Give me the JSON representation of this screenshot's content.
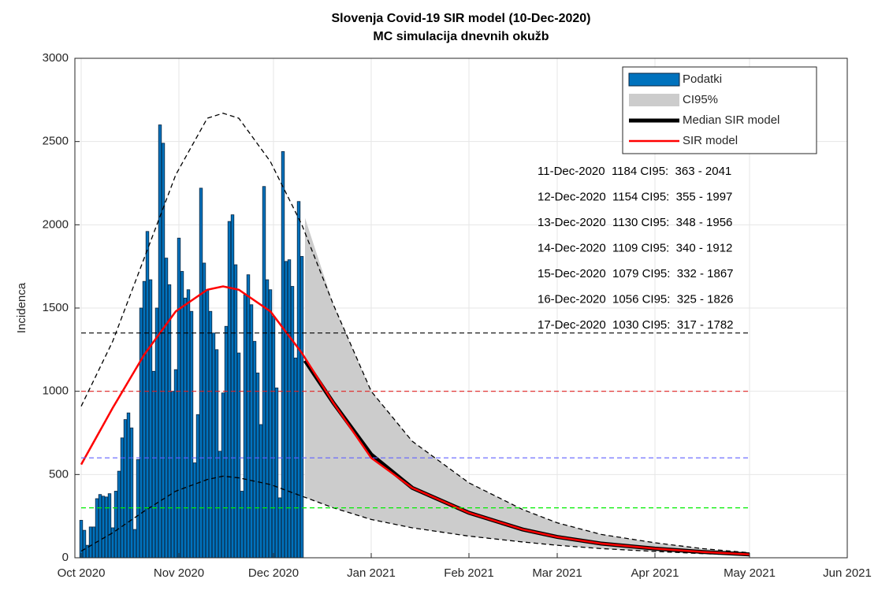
{
  "chart_data": {
    "type": "combo",
    "title": "Slovenja Covid-19 SIR model (10-Dec-2020)",
    "subtitle": "MC simulacija dnevnih okužb",
    "y_label": "Incidenca",
    "xlim": [
      -2,
      243
    ],
    "xticks": [
      {
        "value": 0,
        "label": "Oct 2020"
      },
      {
        "value": 31,
        "label": "Nov 2020"
      },
      {
        "value": 61,
        "label": "Dec 2020"
      },
      {
        "value": 92,
        "label": "Jan 2021"
      },
      {
        "value": 123,
        "label": "Feb 2021"
      },
      {
        "value": 151,
        "label": "Mar 2021"
      },
      {
        "value": 182,
        "label": "Apr 2021"
      },
      {
        "value": 212,
        "label": "May 2021"
      },
      {
        "value": 243,
        "label": "Jun 2021"
      }
    ],
    "ylim": [
      0,
      3000
    ],
    "yticks": [
      0,
      500,
      1000,
      1500,
      2000,
      2500,
      3000
    ],
    "grid": true,
    "legend": "upper right",
    "series": [
      {
        "name": "Podatki",
        "type": "bar",
        "color": "#0072bd",
        "x": [
          0,
          1,
          2,
          3,
          4,
          5,
          6,
          7,
          8,
          9,
          10,
          11,
          12,
          13,
          14,
          15,
          16,
          17,
          18,
          19,
          20,
          21,
          22,
          23,
          24,
          25,
          26,
          27,
          28,
          29,
          30,
          31,
          32,
          33,
          34,
          35,
          36,
          37,
          38,
          39,
          40,
          41,
          42,
          43,
          44,
          45,
          46,
          47,
          48,
          49,
          50,
          51,
          52,
          53,
          54,
          55,
          56,
          57,
          58,
          59,
          60,
          61,
          62,
          63,
          64,
          65,
          66,
          67,
          68,
          69,
          70
        ],
        "values": [
          225,
          165,
          75,
          185,
          185,
          355,
          380,
          370,
          365,
          385,
          180,
          400,
          520,
          720,
          830,
          870,
          780,
          170,
          590,
          1500,
          1660,
          1960,
          1670,
          1120,
          1500,
          2600,
          2490,
          1800,
          1640,
          1000,
          1130,
          1920,
          1720,
          1560,
          1610,
          1480,
          570,
          860,
          2220,
          1770,
          1610,
          1480,
          1350,
          1250,
          640,
          990,
          1390,
          2020,
          2060,
          1760,
          1230,
          400,
          1580,
          1700,
          1520,
          1300,
          1110,
          800,
          2230,
          1670,
          1610,
          1450,
          1020,
          360,
          2440,
          1780,
          1790,
          1630,
          1200,
          2140,
          1810
        ]
      },
      {
        "name": "CI95%",
        "type": "band",
        "color": "#cccccc",
        "x": [
          71,
          80,
          92,
          105,
          123,
          140,
          151,
          165,
          182,
          197,
          212
        ],
        "lower": [
          363,
          300,
          230,
          180,
          130,
          95,
          75,
          55,
          38,
          25,
          15
        ],
        "values": [
          2041,
          1520,
          1000,
          700,
          450,
          290,
          210,
          140,
          90,
          55,
          30
        ]
      },
      {
        "name": "Median SIR model",
        "type": "line",
        "color": "#000000",
        "width": 5,
        "x": [
          71,
          80,
          92,
          105,
          123,
          140,
          151,
          165,
          182,
          197,
          212
        ],
        "values": [
          1184,
          930,
          620,
          420,
          270,
          170,
          125,
          85,
          55,
          35,
          20
        ]
      },
      {
        "name": "SIR model",
        "type": "line",
        "color": "#ff0000",
        "width": 2.5,
        "x": [
          0,
          10,
          20,
          30,
          40,
          45,
          50,
          60,
          70,
          80,
          92,
          105,
          123,
          140,
          151,
          165,
          182,
          197,
          212
        ],
        "values": [
          560,
          900,
          1220,
          1480,
          1610,
          1630,
          1610,
          1480,
          1230,
          930,
          600,
          420,
          270,
          170,
          125,
          85,
          55,
          35,
          20
        ]
      },
      {
        "type": "dashed",
        "color": "#000000",
        "x": [
          0,
          10,
          20,
          30,
          40,
          45,
          50,
          60,
          70,
          80,
          92,
          105,
          123,
          140,
          151,
          165,
          182,
          197,
          212
        ],
        "values": [
          910,
          1300,
          1800,
          2300,
          2640,
          2670,
          2640,
          2380,
          2000,
          1520,
          1000,
          700,
          450,
          290,
          210,
          140,
          90,
          55,
          30
        ]
      },
      {
        "type": "dashed",
        "color": "#000000",
        "x": [
          0,
          10,
          20,
          30,
          40,
          45,
          50,
          60,
          70,
          80,
          92,
          105,
          123,
          140,
          151,
          165,
          182,
          197,
          212
        ],
        "values": [
          40,
          150,
          280,
          400,
          470,
          490,
          480,
          440,
          370,
          300,
          230,
          180,
          130,
          95,
          75,
          55,
          38,
          25,
          15
        ]
      }
    ],
    "reference_lines": [
      {
        "value": 1350,
        "color": "#000000"
      },
      {
        "value": 1000,
        "color": "#e02020"
      },
      {
        "value": 600,
        "color": "#6060ff"
      },
      {
        "value": 300,
        "color": "#00ee00"
      }
    ],
    "annotations": [
      "11-Dec-2020  1184 CI95:  363 - 2041",
      "12-Dec-2020  1154 CI95:  355 - 1997",
      "13-Dec-2020  1130 CI95:  348 - 1956",
      "14-Dec-2020  1109 CI95:  340 - 1912",
      "15-Dec-2020  1079 CI95:  332 - 1867",
      "16-Dec-2020  1056 CI95:  325 - 1826",
      "17-Dec-2020  1030 CI95:  317 - 1782"
    ]
  }
}
